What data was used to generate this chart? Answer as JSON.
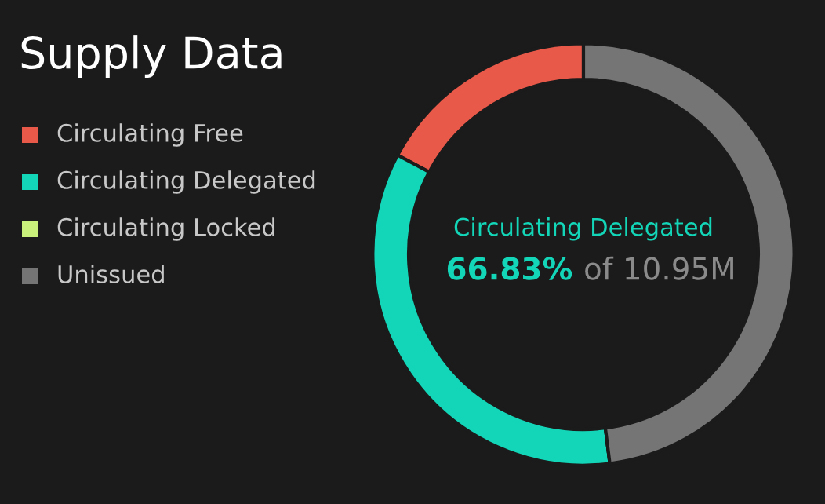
{
  "chart_data": {
    "type": "donut",
    "title": "Supply Data",
    "categories": [
      "Circulating Free",
      "Circulating Delegated",
      "Circulating Locked",
      "Unissued"
    ],
    "values": [
      17.2,
      34.8,
      0,
      48
    ],
    "colors": [
      "#e8594a",
      "#13d6b8",
      "#c9f07a",
      "#757575"
    ],
    "annotations": [
      "Circulating Delegated",
      "66.83%",
      "of 10.95M"
    ],
    "legend": "left"
  }
}
